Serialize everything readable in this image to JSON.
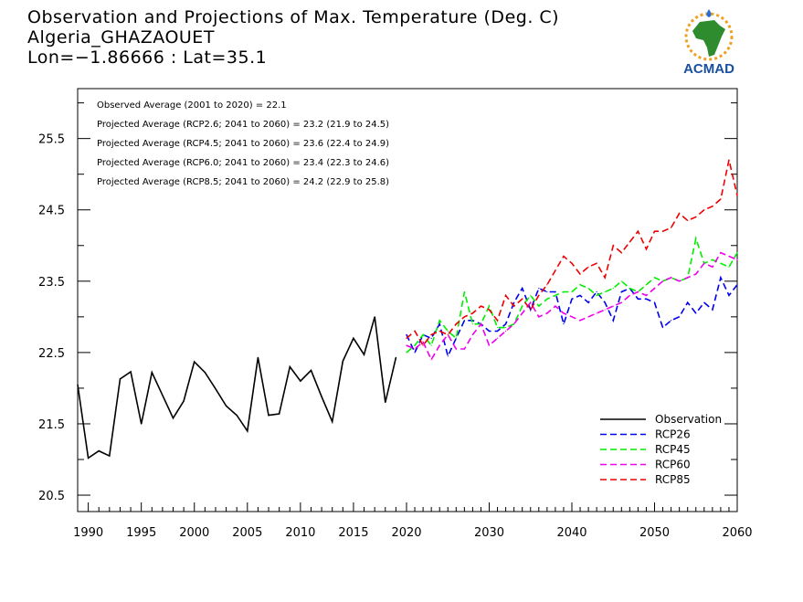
{
  "header": {
    "title_line1": "Observation and Projections of Max. Temperature (Deg. C)",
    "title_line2": "Algeria_GHAZAOUET",
    "title_line3": "Lon=−1.86666 : Lat=35.1"
  },
  "logo": {
    "text": "ACMAD",
    "icon": "africa-map-logo-icon"
  },
  "stats": [
    "Observed Average (2001 to 2020) = 22.1",
    "Projected Average (RCP2.6; 2041 to 2060) = 23.2 (21.9 to 24.5)",
    "Projected Average (RCP4.5; 2041 to 2060) = 23.6 (22.4 to 24.9)",
    "Projected Average (RCP6.0; 2041 to 2060) = 23.4 (22.3 to 24.6)",
    "Projected Average (RCP8.5; 2041 to 2060) = 24.2 (22.9 to 25.8)"
  ],
  "chart_data": {
    "type": "line",
    "x_segments": [
      {
        "range": [
          1989,
          2020
        ],
        "ticks": [
          1990,
          1995,
          2000,
          2005,
          2010,
          2015,
          2020
        ]
      },
      {
        "range": [
          2020,
          2060
        ],
        "ticks": [
          2030,
          2040,
          2050,
          2060
        ]
      }
    ],
    "ylim": [
      20.27,
      26.2
    ],
    "y_ticks": [
      20.5,
      21.5,
      22.5,
      23.5,
      24.5,
      25.5
    ],
    "y_tick_labels": [
      "20.5",
      "21.5",
      "22.5",
      "23.5",
      "24.5",
      "25.5"
    ],
    "series": [
      {
        "name": "Observation",
        "color": "#000000",
        "dashed": false,
        "x": [
          1989,
          1990,
          1991,
          1992,
          1993,
          1994,
          1995,
          1996,
          1997,
          1998,
          1999,
          2000,
          2001,
          2002,
          2003,
          2004,
          2005,
          2006,
          2007,
          2008,
          2009,
          2010,
          2011,
          2012,
          2013,
          2014,
          2015,
          2016,
          2017,
          2018,
          2019
        ],
        "y": [
          22.05,
          21.02,
          21.12,
          21.05,
          22.13,
          22.23,
          21.5,
          22.22,
          21.9,
          21.58,
          21.82,
          22.37,
          22.22,
          21.99,
          21.75,
          21.62,
          21.4,
          22.43,
          21.62,
          21.64,
          22.3,
          22.1,
          22.25,
          21.88,
          21.53,
          22.38,
          22.7,
          22.47,
          23.0,
          21.8,
          22.43
        ]
      },
      {
        "name": "RCP26",
        "color": "#0000ee",
        "dashed": true,
        "x": [
          2020,
          2021,
          2022,
          2023,
          2024,
          2025,
          2026,
          2027,
          2028,
          2029,
          2030,
          2031,
          2032,
          2033,
          2034,
          2035,
          2036,
          2037,
          2038,
          2039,
          2040,
          2041,
          2042,
          2043,
          2044,
          2045,
          2046,
          2047,
          2048,
          2049,
          2050,
          2051,
          2052,
          2053,
          2054,
          2055,
          2056,
          2057,
          2058,
          2059,
          2060
        ],
        "y": [
          22.75,
          22.5,
          22.75,
          22.7,
          22.9,
          22.45,
          22.7,
          22.95,
          22.95,
          22.9,
          22.8,
          22.8,
          22.9,
          23.2,
          23.4,
          23.1,
          23.4,
          23.35,
          23.35,
          22.9,
          23.25,
          23.3,
          23.2,
          23.35,
          23.2,
          22.95,
          23.35,
          23.4,
          23.25,
          23.25,
          23.2,
          22.85,
          22.95,
          23.0,
          23.2,
          23.05,
          23.2,
          23.1,
          23.55,
          23.3,
          23.45
        ]
      },
      {
        "name": "RCP45",
        "color": "#00ee00",
        "dashed": true,
        "x": [
          2020,
          2021,
          2022,
          2023,
          2024,
          2025,
          2026,
          2027,
          2028,
          2029,
          2030,
          2031,
          2032,
          2033,
          2034,
          2035,
          2036,
          2037,
          2038,
          2039,
          2040,
          2041,
          2042,
          2043,
          2044,
          2045,
          2046,
          2047,
          2048,
          2049,
          2050,
          2051,
          2052,
          2053,
          2054,
          2055,
          2056,
          2057,
          2058,
          2059,
          2060
        ],
        "y": [
          22.5,
          22.6,
          22.75,
          22.6,
          22.95,
          22.8,
          22.7,
          23.35,
          22.9,
          22.9,
          23.15,
          22.85,
          22.85,
          22.9,
          23.15,
          23.3,
          23.15,
          23.25,
          23.3,
          23.35,
          23.35,
          23.45,
          23.4,
          23.3,
          23.35,
          23.4,
          23.5,
          23.4,
          23.35,
          23.45,
          23.55,
          23.5,
          23.55,
          23.5,
          23.55,
          24.1,
          23.75,
          23.8,
          23.75,
          23.7,
          23.9
        ]
      },
      {
        "name": "RCP60",
        "color": "#ee00ee",
        "dashed": true,
        "x": [
          2020,
          2021,
          2022,
          2023,
          2024,
          2025,
          2026,
          2027,
          2028,
          2029,
          2030,
          2031,
          2032,
          2033,
          2034,
          2035,
          2036,
          2037,
          2038,
          2039,
          2040,
          2041,
          2042,
          2043,
          2044,
          2045,
          2046,
          2047,
          2048,
          2049,
          2050,
          2051,
          2052,
          2053,
          2054,
          2055,
          2056,
          2057,
          2058,
          2059,
          2060
        ],
        "y": [
          22.6,
          22.55,
          22.65,
          22.4,
          22.6,
          22.75,
          22.55,
          22.55,
          22.75,
          22.9,
          22.6,
          22.7,
          22.8,
          22.9,
          23.05,
          23.2,
          23.0,
          23.05,
          23.15,
          23.05,
          23.0,
          22.95,
          23.0,
          23.05,
          23.1,
          23.15,
          23.2,
          23.3,
          23.35,
          23.3,
          23.4,
          23.5,
          23.55,
          23.5,
          23.55,
          23.6,
          23.75,
          23.7,
          23.9,
          23.85,
          23.8
        ]
      },
      {
        "name": "RCP85",
        "color": "#ee0000",
        "dashed": true,
        "x": [
          2020,
          2021,
          2022,
          2023,
          2024,
          2025,
          2026,
          2027,
          2028,
          2029,
          2030,
          2031,
          2032,
          2033,
          2034,
          2035,
          2036,
          2037,
          2038,
          2039,
          2040,
          2041,
          2042,
          2043,
          2044,
          2045,
          2046,
          2047,
          2048,
          2049,
          2050,
          2051,
          2052,
          2053,
          2054,
          2055,
          2056,
          2057,
          2058,
          2059,
          2060
        ],
        "y": [
          22.7,
          22.8,
          22.6,
          22.75,
          22.8,
          22.75,
          22.9,
          23.0,
          23.05,
          23.15,
          23.1,
          22.95,
          23.3,
          23.15,
          23.25,
          23.1,
          23.3,
          23.45,
          23.65,
          23.85,
          23.75,
          23.6,
          23.7,
          23.75,
          23.55,
          24.0,
          23.9,
          24.05,
          24.2,
          23.95,
          24.2,
          24.2,
          24.25,
          24.45,
          24.35,
          24.4,
          24.5,
          24.55,
          24.65,
          25.2,
          24.7
        ]
      }
    ],
    "legend_position": "bottom-right"
  }
}
